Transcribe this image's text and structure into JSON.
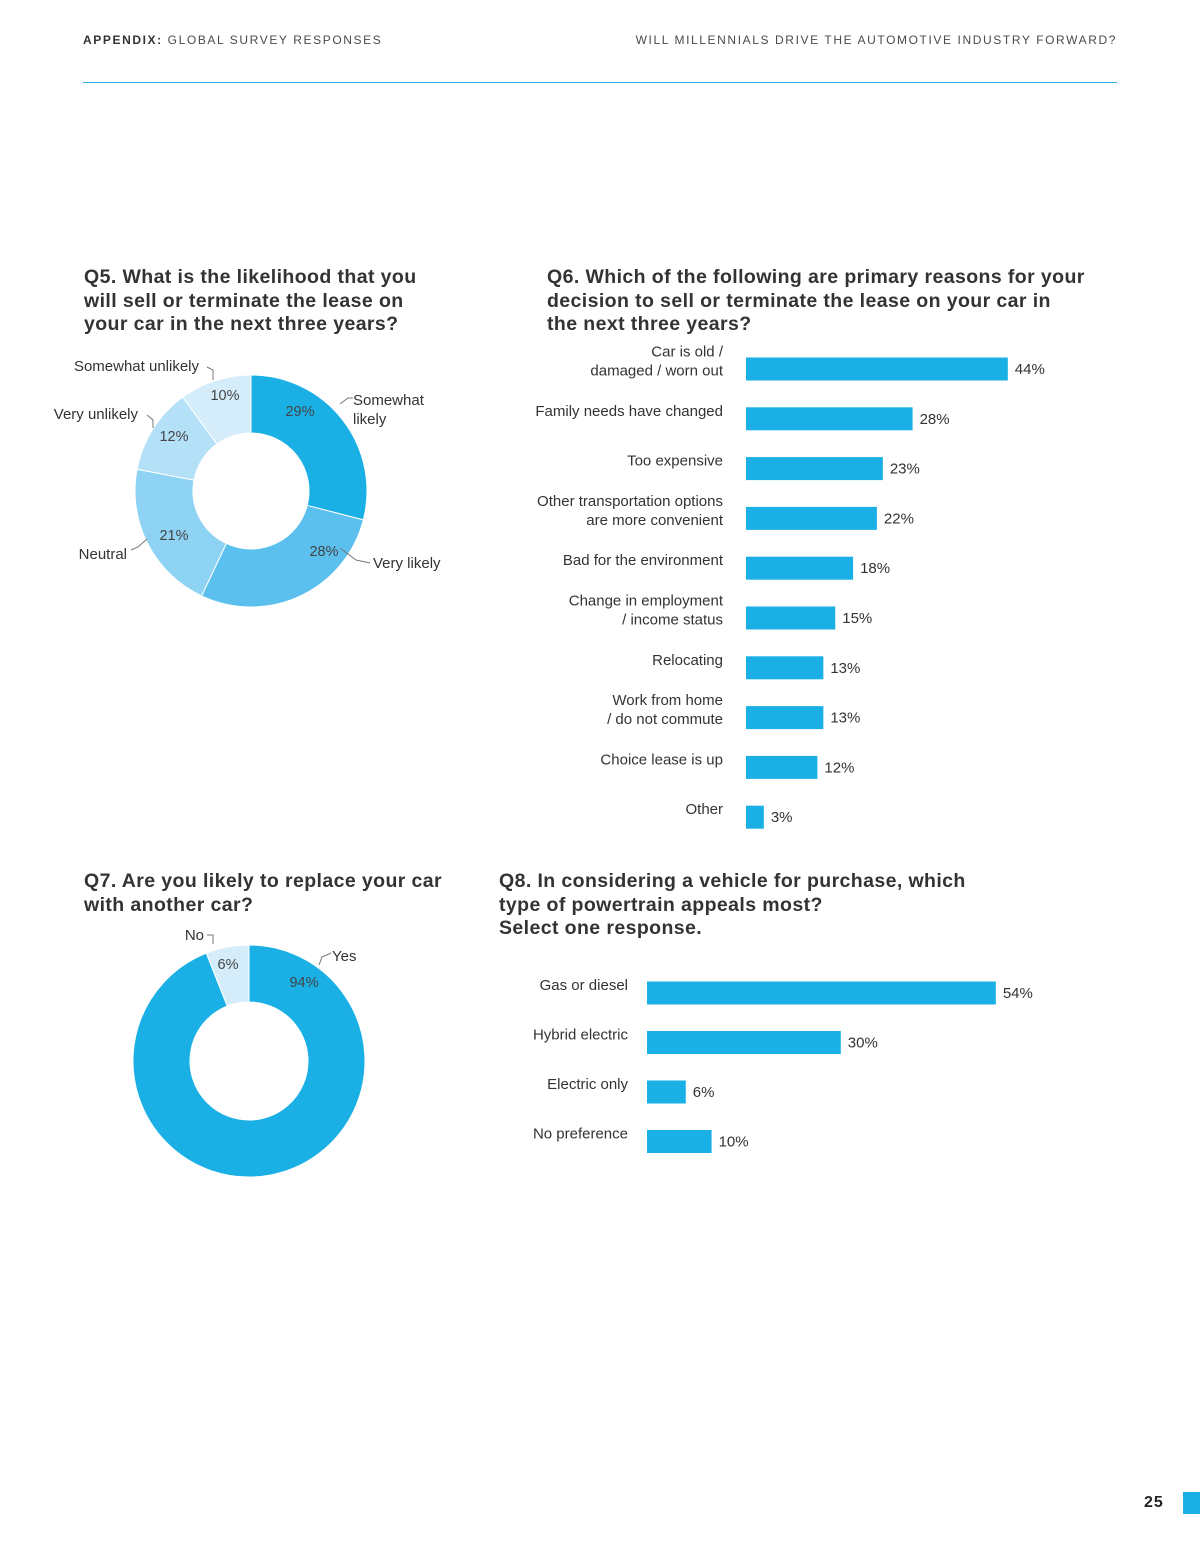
{
  "header": {
    "left_bold": "APPENDIX:",
    "left_rest": " GLOBAL SURVEY RESPONSES",
    "right": "WILL MILLENNIALS DRIVE THE AUTOMOTIVE INDUSTRY FORWARD?"
  },
  "page_number": "25",
  "colors": {
    "primary": "#1ab0e6",
    "medium": "#5bc0ee",
    "light": "#8fd3f4",
    "lighter": "#b5e1f8",
    "lightest": "#d5edfb"
  },
  "q5": {
    "title_lines": [
      "Q5. What is the likelihood that you",
      "will sell or terminate the lease on",
      "your car in the next three years?"
    ]
  },
  "q6": {
    "title_lines": [
      "Q6. Which of the following are primary reasons for your",
      "decision to sell or terminate the lease on your car in",
      "the next three years?"
    ]
  },
  "q7": {
    "title_lines": [
      "Q7. Are you likely to replace your car",
      "with another car?"
    ]
  },
  "q8": {
    "title_lines": [
      "Q8. In considering a vehicle for purchase, which",
      "type of powertrain appeals most?",
      "Select one response."
    ]
  },
  "chart_data": [
    {
      "type": "pie",
      "id": "q5",
      "slices": [
        {
          "label_lines": [
            "Somewhat",
            "likely"
          ],
          "value": 29,
          "value_label": "29%",
          "color": "#1ab0e6"
        },
        {
          "label_lines": [
            "Very likely"
          ],
          "value": 28,
          "value_label": "28%",
          "color": "#5bc0ee"
        },
        {
          "label_lines": [
            "Neutral"
          ],
          "value": 21,
          "value_label": "21%",
          "color": "#8fd3f4"
        },
        {
          "label_lines": [
            "Very unlikely"
          ],
          "value": 12,
          "value_label": "12%",
          "color": "#b5e1f8"
        },
        {
          "label_lines": [
            "Somewhat unlikely"
          ],
          "value": 10,
          "value_label": "10%",
          "color": "#d5edfb"
        }
      ]
    },
    {
      "type": "bar",
      "id": "q6",
      "orientation": "horizontal",
      "categories": [
        [
          "Car is old /",
          "damaged / worn out"
        ],
        [
          "Family needs have changed"
        ],
        [
          "Too expensive"
        ],
        [
          "Other transportation options",
          "are more convenient"
        ],
        [
          "Bad for the environment"
        ],
        [
          "Change in employment",
          "/ income status"
        ],
        [
          "Relocating"
        ],
        [
          "Work from home",
          "/ do not commute"
        ],
        [
          "Choice lease is up"
        ],
        [
          "Other"
        ]
      ],
      "values": [
        44,
        28,
        23,
        22,
        18,
        15,
        13,
        13,
        12,
        3
      ],
      "value_labels": [
        "44%",
        "28%",
        "23%",
        "22%",
        "18%",
        "15%",
        "13%",
        "13%",
        "12%",
        "3%"
      ]
    },
    {
      "type": "pie",
      "id": "q7",
      "slices": [
        {
          "label_lines": [
            "Yes"
          ],
          "value": 94,
          "value_label": "94%",
          "color": "#1ab0e6"
        },
        {
          "label_lines": [
            "No"
          ],
          "value": 6,
          "value_label": "6%",
          "color": "#d5edfb"
        }
      ]
    },
    {
      "type": "bar",
      "id": "q8",
      "orientation": "horizontal",
      "categories": [
        [
          "Gas or diesel"
        ],
        [
          "Hybrid electric"
        ],
        [
          "Electric only"
        ],
        [
          "No preference"
        ]
      ],
      "values": [
        54,
        30,
        6,
        10
      ],
      "value_labels": [
        "54%",
        "30%",
        "6%",
        "10%"
      ]
    }
  ]
}
